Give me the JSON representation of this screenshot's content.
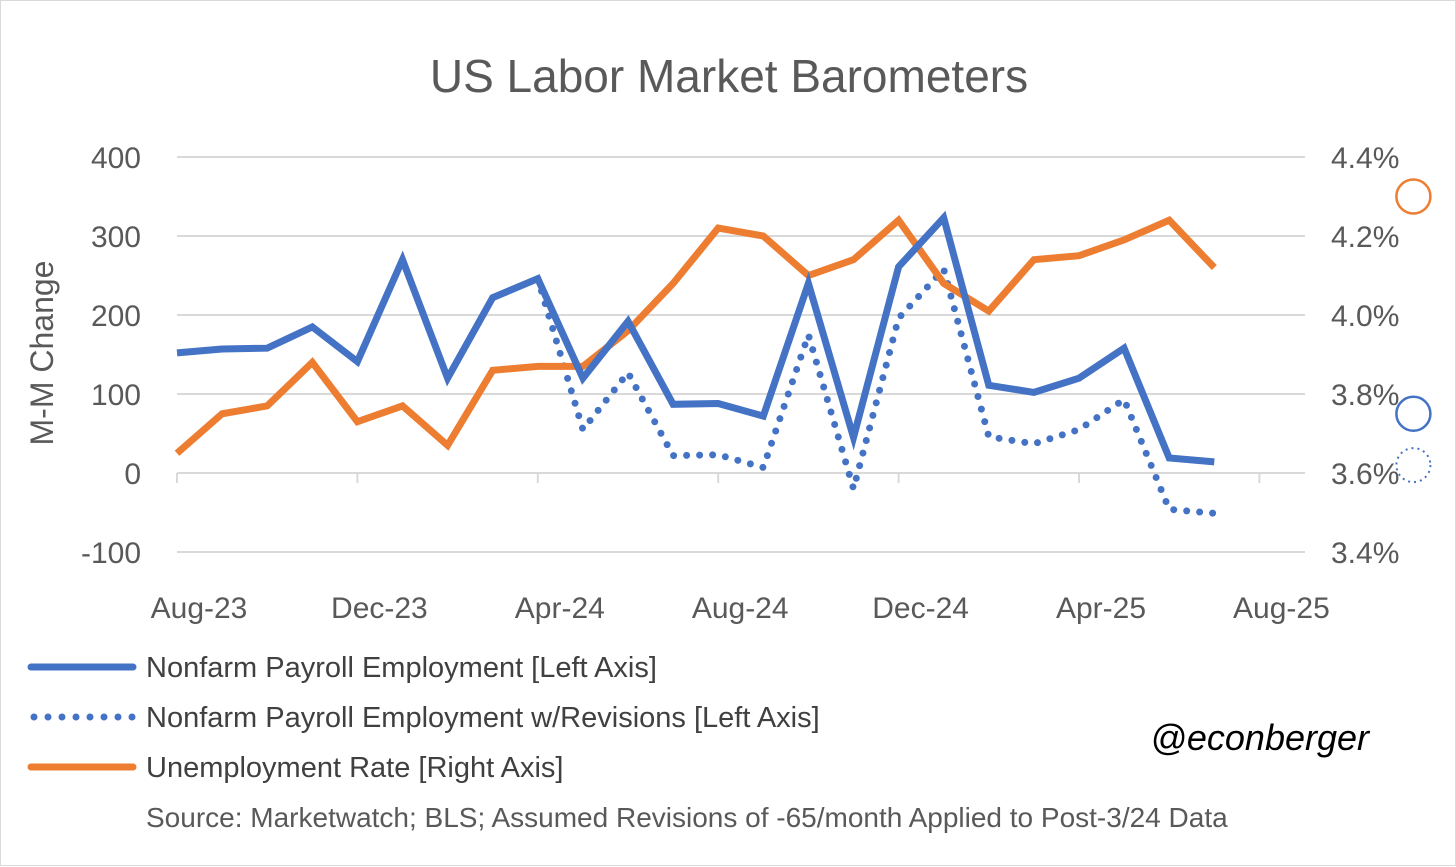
{
  "chart_data": {
    "type": "line",
    "title": "US Labor Market Barometers",
    "ylabel": "M-M Change",
    "ylim": [
      -100,
      400
    ],
    "y2lim": [
      3.4,
      4.4
    ],
    "y_ticks": [
      "-100",
      "0",
      "100",
      "200",
      "300",
      "400"
    ],
    "y2_ticks": [
      "3.4%",
      "3.6%",
      "3.8%",
      "4.0%",
      "4.2%",
      "4.4%"
    ],
    "x_ticks": [
      "Aug-23",
      "Dec-23",
      "Apr-24",
      "Aug-24",
      "Dec-24",
      "Apr-25",
      "Aug-25"
    ],
    "x": [
      "Aug-23",
      "Sep-23",
      "Oct-23",
      "Nov-23",
      "Dec-23",
      "Jan-24",
      "Feb-24",
      "Mar-24",
      "Apr-24",
      "May-24",
      "Jun-24",
      "Jul-24",
      "Aug-24",
      "Sep-24",
      "Oct-24",
      "Nov-24",
      "Dec-24",
      "Jan-25",
      "Feb-25",
      "Mar-25",
      "Apr-25",
      "May-25",
      "Jun-25",
      "Jul-25",
      "Aug-25"
    ],
    "series": [
      {
        "name": "Nonfarm Payroll Employment [Left Axis]",
        "axis": "left",
        "style": "solid",
        "color": "#4472C4",
        "values": [
          152,
          157,
          158,
          185,
          141,
          270,
          120,
          222,
          246,
          120,
          192,
          87,
          88,
          72,
          240,
          45,
          261,
          323,
          111,
          102,
          120,
          158,
          19,
          14,
          73
        ],
        "projection": {
          "x": "Aug-25",
          "value": 75
        }
      },
      {
        "name": "Nonfarm Payroll Employment w/Revisions [Left Axis]",
        "axis": "left",
        "style": "dotted",
        "color": "#4472C4",
        "values": [
          null,
          null,
          null,
          null,
          null,
          null,
          null,
          null,
          246,
          55,
          127,
          22,
          23,
          7,
          175,
          -20,
          196,
          258,
          46,
          37,
          55,
          93,
          -46,
          -51,
          8
        ],
        "projection": {
          "x": "Aug-25",
          "value": 10
        }
      },
      {
        "name": "Unemployment Rate [Right Axis]",
        "axis": "right",
        "style": "solid",
        "color": "#ED7D31",
        "values": [
          3.65,
          3.75,
          3.77,
          3.88,
          3.73,
          3.77,
          3.67,
          3.86,
          3.87,
          3.87,
          3.96,
          4.08,
          4.22,
          4.2,
          4.1,
          4.14,
          4.24,
          4.08,
          4.01,
          4.14,
          4.15,
          4.19,
          4.24,
          4.12,
          4.25
        ],
        "projection": {
          "x": "Aug-25",
          "value": 4.3
        }
      }
    ],
    "grid": true,
    "legend_position": "bottom-left"
  },
  "source_note": "Source: Marketwatch; BLS; Assumed Revisions of -65/month Applied to Post-3/24 Data",
  "handle": "@econberger"
}
